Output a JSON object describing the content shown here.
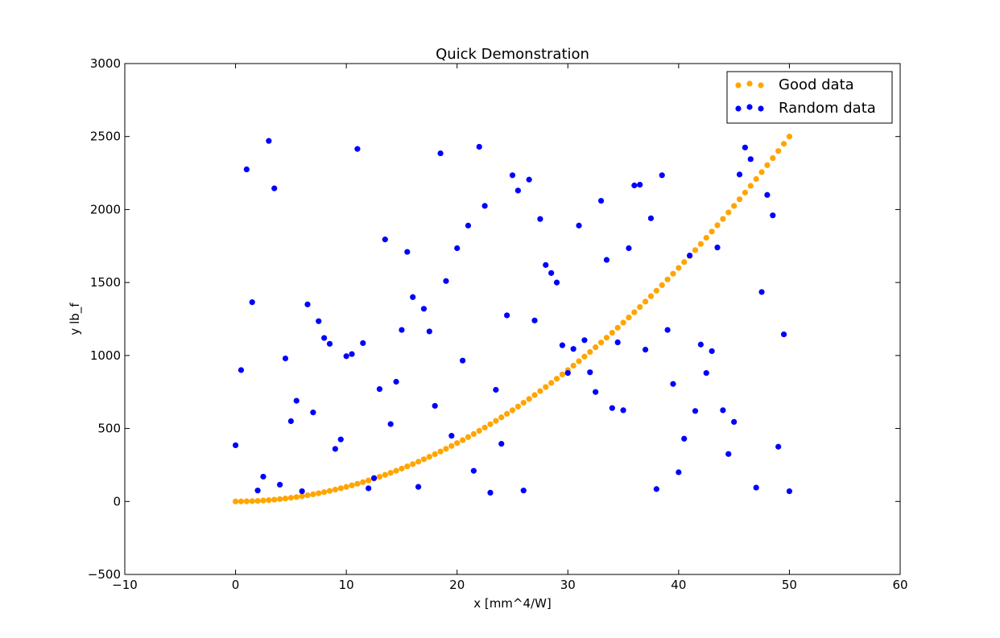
{
  "chart_data": {
    "type": "scatter",
    "title": "Quick Demonstration",
    "xlabel": "x [mm^4/W]",
    "ylabel": "y lb_f",
    "xlim": [
      -10,
      60
    ],
    "ylim": [
      -500,
      3000
    ],
    "xticks": [
      -10,
      0,
      10,
      20,
      30,
      40,
      50,
      60
    ],
    "yticks": [
      -500,
      0,
      500,
      1000,
      1500,
      2000,
      2500,
      3000
    ],
    "xtick_labels": [
      "−10",
      "0",
      "10",
      "20",
      "30",
      "40",
      "50",
      "60"
    ],
    "ytick_labels": [
      "−500",
      "0",
      "500",
      "1000",
      "1500",
      "2000",
      "2500",
      "3000"
    ],
    "legend_position": "top-right",
    "grid": false,
    "series": [
      {
        "name": "Good data",
        "color": "#ffa500",
        "formula": "y = x^2",
        "x": [
          0,
          0.5,
          1,
          1.5,
          2,
          2.5,
          3,
          3.5,
          4,
          4.5,
          5,
          5.5,
          6,
          6.5,
          7,
          7.5,
          8,
          8.5,
          9,
          9.5,
          10,
          10.5,
          11,
          11.5,
          12,
          12.5,
          13,
          13.5,
          14,
          14.5,
          15,
          15.5,
          16,
          16.5,
          17,
          17.5,
          18,
          18.5,
          19,
          19.5,
          20,
          20.5,
          21,
          21.5,
          22,
          22.5,
          23,
          23.5,
          24,
          24.5,
          25,
          25.5,
          26,
          26.5,
          27,
          27.5,
          28,
          28.5,
          29,
          29.5,
          30,
          30.5,
          31,
          31.5,
          32,
          32.5,
          33,
          33.5,
          34,
          34.5,
          35,
          35.5,
          36,
          36.5,
          37,
          37.5,
          38,
          38.5,
          39,
          39.5,
          40,
          40.5,
          41,
          41.5,
          42,
          42.5,
          43,
          43.5,
          44,
          44.5,
          45,
          45.5,
          46,
          46.5,
          47,
          47.5,
          48,
          48.5,
          49,
          49.5,
          50
        ],
        "y": [
          0,
          0.25,
          1,
          2.25,
          4,
          6.25,
          9,
          12.25,
          16,
          20.25,
          25,
          30.25,
          36,
          42.25,
          49,
          56.25,
          64,
          72.25,
          81,
          90.25,
          100,
          110.25,
          121,
          132.25,
          144,
          156.25,
          169,
          182.25,
          196,
          210.25,
          225,
          240.25,
          256,
          272.25,
          289,
          306.25,
          324,
          342.25,
          361,
          380.25,
          400,
          420.25,
          441,
          462.25,
          484,
          506.25,
          529,
          552.25,
          576,
          600.25,
          625,
          650.25,
          676,
          702.25,
          729,
          756.25,
          784,
          812.25,
          841,
          870.25,
          900,
          930.25,
          961,
          992.25,
          1024,
          1056.25,
          1089,
          1122.25,
          1156,
          1190.25,
          1225,
          1260.25,
          1296,
          1332.25,
          1369,
          1406.25,
          1444,
          1482.25,
          1521,
          1560.25,
          1600,
          1640.25,
          1681,
          1722.25,
          1764,
          1806.25,
          1849,
          1892.25,
          1936,
          1980.25,
          2025,
          2070.25,
          2116,
          2162.25,
          2209,
          2256.25,
          2304,
          2352.25,
          2401,
          2450.25,
          2500
        ]
      },
      {
        "name": "Random data",
        "color": "#0000ff",
        "x": [
          0,
          0.5,
          1,
          1.5,
          2,
          2.5,
          3,
          3.5,
          4,
          4.5,
          5,
          5.5,
          6,
          6.5,
          7,
          7.5,
          8,
          8.5,
          9,
          9.5,
          10,
          10.5,
          11,
          11.5,
          12,
          12.5,
          13,
          13.5,
          14,
          14.5,
          15,
          15.5,
          16,
          16.5,
          17,
          17.5,
          18,
          18.5,
          19,
          19.5,
          20,
          20.5,
          21,
          21.5,
          22,
          22.5,
          23,
          23.5,
          24,
          24.5,
          25,
          25.5,
          26,
          26.5,
          27,
          27.5,
          28,
          28.5,
          29,
          29.5,
          30,
          30.5,
          31,
          31.5,
          32,
          32.5,
          33,
          33.5,
          34,
          34.5,
          35,
          35.5,
          36,
          36.5,
          37,
          37.5,
          38,
          38.5,
          39,
          39.5,
          40,
          40.5,
          41,
          41.5,
          42,
          42.5,
          43,
          43.5,
          44,
          44.5,
          45,
          45.5,
          46,
          46.5,
          47,
          47.5,
          48,
          48.5,
          49,
          49.5,
          50
        ],
        "y": [
          385,
          900,
          2275,
          1365,
          75,
          170,
          2470,
          2145,
          115,
          980,
          550,
          690,
          70,
          1350,
          610,
          1235,
          1120,
          1080,
          360,
          425,
          995,
          1010,
          2415,
          1085,
          90,
          160,
          770,
          1795,
          530,
          820,
          1175,
          1710,
          1400,
          100,
          1320,
          1165,
          655,
          2385,
          1510,
          450,
          1735,
          965,
          1890,
          210,
          2430,
          2025,
          60,
          765,
          395,
          1275,
          2235,
          2130,
          75,
          2205,
          1240,
          1935,
          1620,
          1565,
          1500,
          1070,
          880,
          1045,
          1890,
          1105,
          885,
          750,
          2060,
          1655,
          640,
          1090,
          625,
          1735,
          2165,
          2170,
          1040,
          1940,
          85,
          2235,
          1175,
          805,
          200,
          430,
          1685,
          620,
          1075,
          880,
          1030,
          1740,
          625,
          325,
          545,
          2240,
          2425,
          2345,
          95,
          1435,
          2100,
          1960,
          375,
          1145,
          70
        ]
      }
    ]
  }
}
